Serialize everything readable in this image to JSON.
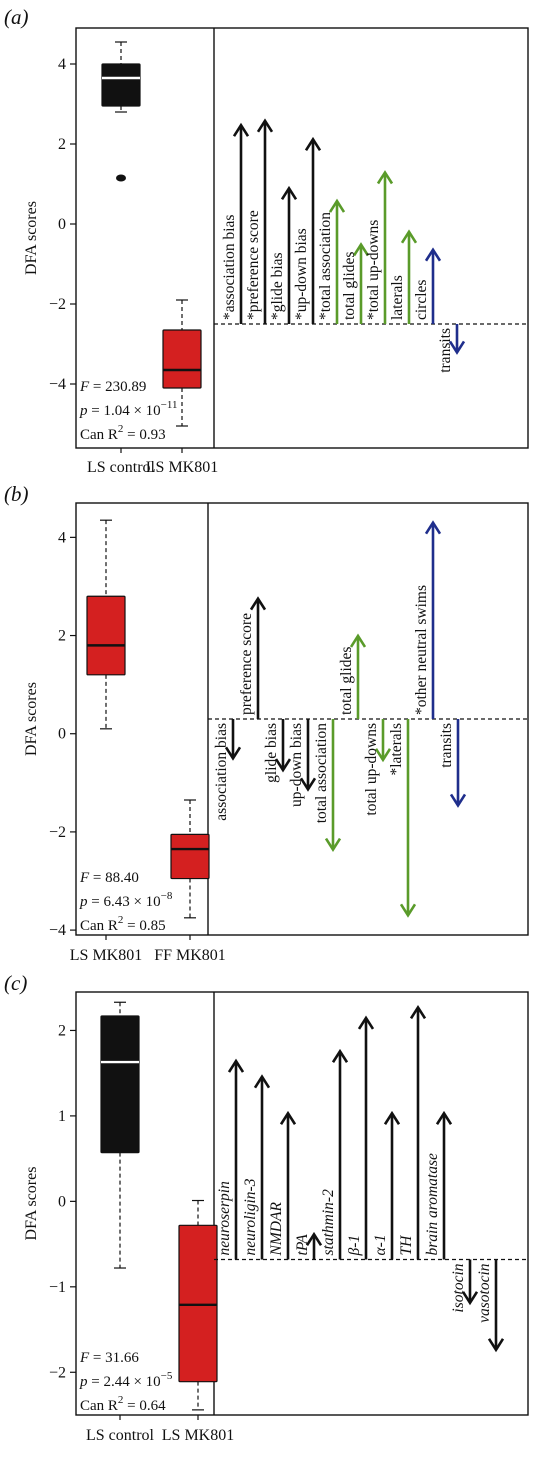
{
  "chart_data": [
    {
      "panel": "(a)",
      "type": "boxplot+loading-arrows",
      "ylabel": "DFA scores",
      "ylim": [
        -5.6,
        4.9
      ],
      "yticks": [
        "4",
        "2",
        "0",
        "−2",
        "−4"
      ],
      "ytick_values": [
        4,
        2,
        0,
        -2,
        -4
      ],
      "baseline": -2.5,
      "arrow_span": [
        -5.1,
        4.3
      ],
      "boxes": [
        {
          "label": "LS control",
          "color": "#111111",
          "median_color": "#ffffff",
          "whisker_low": 2.8,
          "q1": 2.95,
          "median": 3.65,
          "q3": 4.0,
          "whisker_high": 4.55,
          "outliers": [
            1.15
          ]
        },
        {
          "label": "LS MK801",
          "color": "#d42020",
          "median_color": "#111111",
          "whisker_low": -5.05,
          "q1": -4.1,
          "median": -3.65,
          "q3": -2.65,
          "whisker_high": -1.9,
          "outliers": []
        }
      ],
      "stats": {
        "F_label": "F",
        "F_value": " = 230.89",
        "p_label": "p",
        "p_value": " = 1.04 × 10",
        "p_exp": "−11",
        "r2_label": "Can R",
        "r2_sup": "2",
        "r2_value": " = 0.93"
      },
      "arrows": [
        {
          "label": "*association bias",
          "loading": 0.731,
          "color": "#111111"
        },
        {
          "label": "*preference score",
          "loading": 0.747,
          "color": "#111111"
        },
        {
          "label": "*glide bias",
          "loading": 0.499,
          "color": "#111111"
        },
        {
          "label": "*up-down bias",
          "loading": 0.679,
          "color": "#111111"
        },
        {
          "label": "*total association",
          "loading": 0.452,
          "color": "#5a9b2a"
        },
        {
          "label": "total glides",
          "loading": 0.292,
          "color": "#5a9b2a"
        },
        {
          "label": "*total up-downs",
          "loading": 0.557,
          "color": "#5a9b2a"
        },
        {
          "label": "laterals",
          "loading": 0.339,
          "color": "#5a9b2a"
        },
        {
          "label": "circles",
          "loading": 0.273,
          "color": "#1f2e8c"
        },
        {
          "label": "transits",
          "loading": -0.273,
          "color": "#1f2e8c"
        }
      ]
    },
    {
      "panel": "(b)",
      "type": "boxplot+loading-arrows",
      "ylabel": "DFA scores",
      "ylim": [
        -4.1,
        4.7
      ],
      "yticks": [
        "4",
        "2",
        "0",
        "−2",
        "−4"
      ],
      "ytick_values": [
        4,
        2,
        0,
        -2,
        -4
      ],
      "baseline": 0.3,
      "arrow_span": [
        -3.7,
        4.3
      ],
      "boxes": [
        {
          "label": "LS MK801",
          "color": "#d42020",
          "median_color": "#111111",
          "whisker_low": 0.1,
          "q1": 1.2,
          "median": 1.8,
          "q3": 2.8,
          "whisker_high": 4.35,
          "outliers": []
        },
        {
          "label": "FF MK801",
          "color": "#d42020",
          "median_color": "#111111",
          "whisker_low": -3.75,
          "q1": -2.95,
          "median": -2.35,
          "q3": -2.05,
          "whisker_high": -1.35,
          "outliers": []
        }
      ],
      "stats": {
        "F_label": "F",
        "F_value": " = 88.40",
        "p_label": "p",
        "p_value": " = 6.43 × 10",
        "p_exp": "−8",
        "r2_label": "Can R",
        "r2_sup": "2",
        "r2_value": " = 0.85"
      },
      "arrows": [
        {
          "label": "association bias",
          "loading": -0.2,
          "color": "#111111"
        },
        {
          "label": "preference score",
          "loading": 0.613,
          "color": "#111111"
        },
        {
          "label": "glide bias",
          "loading": -0.26,
          "color": "#111111"
        },
        {
          "label": "up-down bias",
          "loading": -0.358,
          "color": "#111111"
        },
        {
          "label": "total association",
          "loading": -0.665,
          "color": "#5a9b2a"
        },
        {
          "label": "total glides",
          "loading": 0.423,
          "color": "#5a9b2a"
        },
        {
          "label": "total up-downs",
          "loading": -0.208,
          "color": "#5a9b2a"
        },
        {
          "label": "*laterals",
          "loading": -1.0,
          "color": "#5a9b2a"
        },
        {
          "label": "*other neutral swims",
          "loading": 1.0,
          "color": "#1f2e8c"
        },
        {
          "label": "transits",
          "loading": -0.44,
          "color": "#1f2e8c"
        }
      ]
    },
    {
      "panel": "(c)",
      "type": "boxplot+loading-arrows",
      "ylabel": "DFA scores",
      "ylim": [
        -2.5,
        2.45
      ],
      "yticks": [
        "2",
        "1",
        "0",
        "−1",
        "−2"
      ],
      "ytick_values": [
        2,
        1,
        0,
        -1,
        -2
      ],
      "baseline": -0.68,
      "arrow_span": [
        -2.43,
        2.27
      ],
      "boxes": [
        {
          "label": "LS control",
          "color": "#111111",
          "median_color": "#ffffff",
          "whisker_low": -0.78,
          "q1": 0.57,
          "median": 1.63,
          "q3": 2.17,
          "whisker_high": 2.33,
          "outliers": []
        },
        {
          "label": "LS MK801",
          "color": "#d42020",
          "median_color": "#111111",
          "whisker_low": -2.44,
          "q1": -2.11,
          "median": -1.21,
          "q3": -0.28,
          "whisker_high": 0.01,
          "outliers": []
        }
      ],
      "stats": {
        "F_label": "F",
        "F_value": " = 31.66",
        "p_label": "p",
        "p_value": " = 2.44 × 10",
        "p_exp": "−5",
        "r2_label": "Can R",
        "r2_sup": "2",
        "r2_value": " = 0.64"
      },
      "arrows": [
        {
          "label": "neuroserpin",
          "loading": 0.787,
          "color": "#111111"
        },
        {
          "label": "neuroligin-3",
          "loading": 0.725,
          "color": "#111111"
        },
        {
          "label": "NMDAR",
          "loading": 0.58,
          "color": "#111111"
        },
        {
          "label": "tPA",
          "loading": 0.1,
          "color": "#111111"
        },
        {
          "label": "stathmin-2",
          "loading": 0.826,
          "color": "#111111"
        },
        {
          "label": "β-1",
          "loading": 0.958,
          "color": "#111111"
        },
        {
          "label": "α-1",
          "loading": 0.58,
          "color": "#111111"
        },
        {
          "label": "TH",
          "loading": 1.0,
          "color": "#111111"
        },
        {
          "label": "brain aromatase",
          "loading": 0.58,
          "color": "#111111"
        },
        {
          "label": "isotocin",
          "loading": -0.29,
          "color": "#111111"
        },
        {
          "label": "vasotocin",
          "loading": -0.604,
          "color": "#111111"
        }
      ]
    }
  ]
}
